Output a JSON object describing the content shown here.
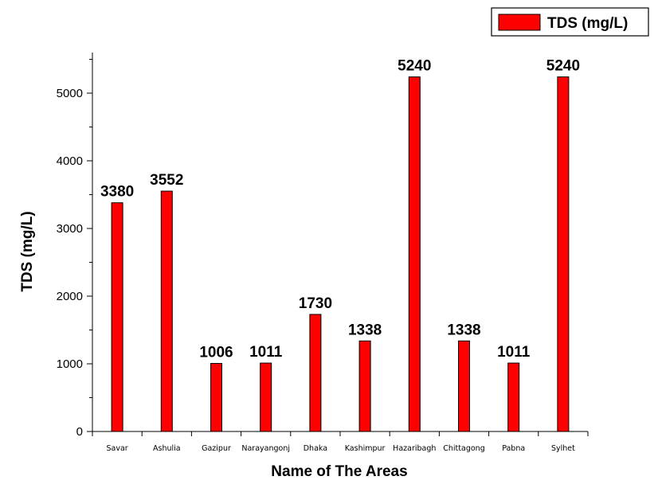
{
  "chart_data": {
    "type": "bar",
    "categories": [
      "Savar",
      "Ashulia",
      "Gazipur",
      "Narayangonj",
      "Dhaka",
      "Kashimpur",
      "Hazaribagh",
      "Chittagong",
      "Pabna",
      "Sylhet"
    ],
    "series": [
      {
        "name": "TDS (mg/L)",
        "values": [
          3380,
          3552,
          1006,
          1011,
          1730,
          1338,
          5240,
          1338,
          1011,
          5240
        ],
        "color": "#ff0000"
      }
    ],
    "data_labels": [
      "3380",
      "3552",
      "1006",
      "1011",
      "1730",
      "1338",
      "5240",
      "1338",
      "1011",
      "5240"
    ],
    "xlabel": "Name of The Areas",
    "ylabel": "TDS (mg/L)",
    "ylim": [
      0,
      5600
    ],
    "yticks": [
      0,
      1000,
      2000,
      3000,
      4000,
      5000
    ],
    "ytick_labels": [
      "0",
      "1000",
      "2000",
      "3000",
      "4000",
      "5000"
    ],
    "grid": false,
    "legend": {
      "position": "top-right",
      "label": "TDS (mg/L)"
    }
  }
}
